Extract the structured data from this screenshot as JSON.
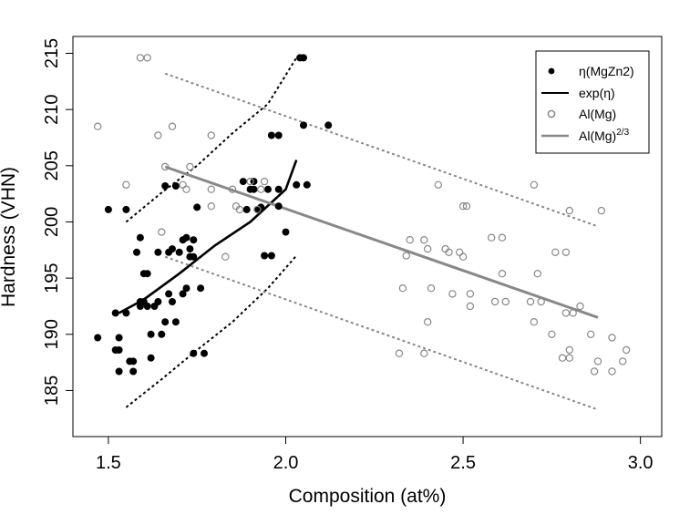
{
  "chart_data": {
    "type": "scatter",
    "xlabel": "Composition (at%)",
    "ylabel": "Hardness (VHN)",
    "xlim": [
      1.4,
      3.06
    ],
    "ylim": [
      180.9,
      216.5
    ],
    "x_ticks": [
      "1.5",
      "2.0",
      "2.5",
      "3.0"
    ],
    "y_ticks": [
      "185",
      "190",
      "195",
      "200",
      "205",
      "210",
      "215"
    ],
    "legend_position": "top-right",
    "legend": [
      {
        "label": "η(MgZn2)",
        "kind": "filled-point",
        "color": "#000000"
      },
      {
        "label": "exp(η)",
        "kind": "line",
        "color": "#000000"
      },
      {
        "label": "Al(Mg)",
        "kind": "open-point",
        "color": "#888888"
      },
      {
        "label": "Al(Mg)",
        "superscript": "2/3",
        "kind": "line",
        "color": "#888888"
      }
    ],
    "series": [
      {
        "key": "eta",
        "color": "#000000",
        "marker": "filled-circle",
        "points": [
          [
            1.47,
            189.7
          ],
          [
            1.5,
            201.1
          ],
          [
            1.52,
            191.9
          ],
          [
            1.52,
            188.6
          ],
          [
            1.53,
            188.6
          ],
          [
            1.53,
            189.7
          ],
          [
            1.53,
            186.7
          ],
          [
            1.55,
            201.1
          ],
          [
            1.55,
            191.9
          ],
          [
            1.56,
            187.6
          ],
          [
            1.57,
            187.6
          ],
          [
            1.57,
            186.7
          ],
          [
            1.58,
            197.3
          ],
          [
            1.59,
            192.5
          ],
          [
            1.59,
            192.9
          ],
          [
            1.59,
            198.6
          ],
          [
            1.6,
            195.4
          ],
          [
            1.6,
            192.9
          ],
          [
            1.61,
            192.5
          ],
          [
            1.61,
            195.4
          ],
          [
            1.62,
            190.0
          ],
          [
            1.62,
            187.9
          ],
          [
            1.63,
            192.5
          ],
          [
            1.64,
            197.3
          ],
          [
            1.64,
            192.9
          ],
          [
            1.65,
            190.0
          ],
          [
            1.66,
            191.1
          ],
          [
            1.66,
            203.2
          ],
          [
            1.67,
            193.6
          ],
          [
            1.67,
            197.3
          ],
          [
            1.68,
            197.6
          ],
          [
            1.68,
            192.9
          ],
          [
            1.69,
            191.1
          ],
          [
            1.69,
            203.2
          ],
          [
            1.7,
            197.3
          ],
          [
            1.71,
            198.4
          ],
          [
            1.71,
            193.6
          ],
          [
            1.72,
            198.6
          ],
          [
            1.72,
            194.1
          ],
          [
            1.73,
            197.6
          ],
          [
            1.73,
            196.9
          ],
          [
            1.74,
            188.3
          ],
          [
            1.74,
            196.9
          ],
          [
            1.74,
            198.4
          ],
          [
            1.75,
            201.3
          ],
          [
            1.76,
            194.1
          ],
          [
            1.77,
            188.3
          ],
          [
            1.88,
            203.6
          ],
          [
            1.89,
            201.1
          ],
          [
            1.9,
            202.9
          ],
          [
            1.91,
            203.6
          ],
          [
            1.91,
            202.9
          ],
          [
            1.92,
            201.1
          ],
          [
            1.93,
            201.3
          ],
          [
            1.94,
            197.0
          ],
          [
            1.95,
            202.9
          ],
          [
            1.96,
            197.0
          ],
          [
            1.96,
            207.7
          ],
          [
            1.98,
            207.7
          ],
          [
            1.98,
            202.9
          ],
          [
            1.98,
            201.4
          ],
          [
            2.0,
            199.1
          ],
          [
            2.03,
            203.3
          ],
          [
            2.04,
            214.6
          ],
          [
            2.05,
            214.6
          ],
          [
            2.05,
            208.6
          ],
          [
            2.06,
            203.3
          ],
          [
            2.12,
            208.6
          ]
        ]
      },
      {
        "key": "al",
        "color": "#888888",
        "marker": "open-circle",
        "points": [
          [
            1.47,
            208.5
          ],
          [
            1.55,
            203.3
          ],
          [
            1.59,
            214.6
          ],
          [
            1.61,
            214.6
          ],
          [
            1.64,
            207.7
          ],
          [
            1.65,
            199.1
          ],
          [
            1.66,
            204.9
          ],
          [
            1.68,
            208.5
          ],
          [
            1.71,
            203.3
          ],
          [
            1.72,
            202.9
          ],
          [
            1.73,
            204.9
          ],
          [
            1.79,
            207.7
          ],
          [
            1.79,
            202.9
          ],
          [
            1.79,
            201.4
          ],
          [
            1.83,
            196.9
          ],
          [
            1.85,
            202.9
          ],
          [
            1.86,
            201.4
          ],
          [
            1.87,
            201.1
          ],
          [
            1.9,
            203.6
          ],
          [
            1.92,
            201.1
          ],
          [
            1.93,
            202.9
          ],
          [
            1.94,
            203.6
          ],
          [
            2.32,
            188.3
          ],
          [
            2.33,
            194.1
          ],
          [
            2.34,
            197.0
          ],
          [
            2.35,
            198.4
          ],
          [
            2.39,
            188.3
          ],
          [
            2.39,
            198.4
          ],
          [
            2.4,
            197.6
          ],
          [
            2.4,
            191.1
          ],
          [
            2.41,
            194.1
          ],
          [
            2.43,
            203.3
          ],
          [
            2.45,
            197.6
          ],
          [
            2.46,
            197.3
          ],
          [
            2.47,
            193.6
          ],
          [
            2.49,
            197.3
          ],
          [
            2.5,
            196.9
          ],
          [
            2.5,
            201.4
          ],
          [
            2.51,
            201.4
          ],
          [
            2.52,
            192.5
          ],
          [
            2.52,
            193.6
          ],
          [
            2.58,
            198.6
          ],
          [
            2.59,
            192.9
          ],
          [
            2.61,
            195.4
          ],
          [
            2.61,
            198.6
          ],
          [
            2.62,
            192.9
          ],
          [
            2.69,
            192.9
          ],
          [
            2.7,
            203.3
          ],
          [
            2.7,
            191.1
          ],
          [
            2.71,
            195.4
          ],
          [
            2.72,
            192.9
          ],
          [
            2.75,
            190.0
          ],
          [
            2.76,
            197.3
          ],
          [
            2.78,
            187.9
          ],
          [
            2.79,
            197.3
          ],
          [
            2.79,
            191.9
          ],
          [
            2.8,
            187.9
          ],
          [
            2.8,
            188.6
          ],
          [
            2.81,
            191.9
          ],
          [
            2.8,
            201.0
          ],
          [
            2.83,
            192.5
          ],
          [
            2.86,
            190.0
          ],
          [
            2.87,
            186.7
          ],
          [
            2.88,
            187.6
          ],
          [
            2.89,
            201.0
          ],
          [
            2.92,
            186.7
          ],
          [
            2.92,
            189.7
          ],
          [
            2.95,
            187.6
          ],
          [
            2.96,
            188.6
          ]
        ]
      }
    ],
    "fits": [
      {
        "key": "exp-eta-fit",
        "color": "#000000",
        "style": "solid",
        "points": [
          [
            1.53,
            191.9
          ],
          [
            1.6,
            193.1
          ],
          [
            1.7,
            195.4
          ],
          [
            1.8,
            197.9
          ],
          [
            1.9,
            200.0
          ],
          [
            2.0,
            202.9
          ],
          [
            2.03,
            205.5
          ]
        ]
      },
      {
        "key": "exp-eta-upper",
        "color": "#000000",
        "style": "dotted",
        "points": [
          [
            1.55,
            200.0
          ],
          [
            1.65,
            202.6
          ],
          [
            1.75,
            205.0
          ],
          [
            1.85,
            207.9
          ],
          [
            1.95,
            210.5
          ],
          [
            2.03,
            214.6
          ]
        ]
      },
      {
        "key": "exp-eta-lower",
        "color": "#000000",
        "style": "dotted",
        "points": [
          [
            1.55,
            183.5
          ],
          [
            1.65,
            186.0
          ],
          [
            1.75,
            188.6
          ],
          [
            1.85,
            191.1
          ],
          [
            1.95,
            194.1
          ],
          [
            2.03,
            197.0
          ]
        ]
      },
      {
        "key": "al-mg-fit",
        "color": "#888888",
        "style": "solid",
        "points": [
          [
            1.66,
            204.9
          ],
          [
            2.88,
            191.5
          ]
        ]
      },
      {
        "key": "al-mg-upper",
        "color": "#888888",
        "style": "dotted",
        "points": [
          [
            1.66,
            213.2
          ],
          [
            2.88,
            199.6
          ]
        ]
      },
      {
        "key": "al-mg-lower",
        "color": "#888888",
        "style": "dotted",
        "points": [
          [
            1.66,
            196.9
          ],
          [
            2.88,
            183.3
          ]
        ]
      }
    ]
  }
}
